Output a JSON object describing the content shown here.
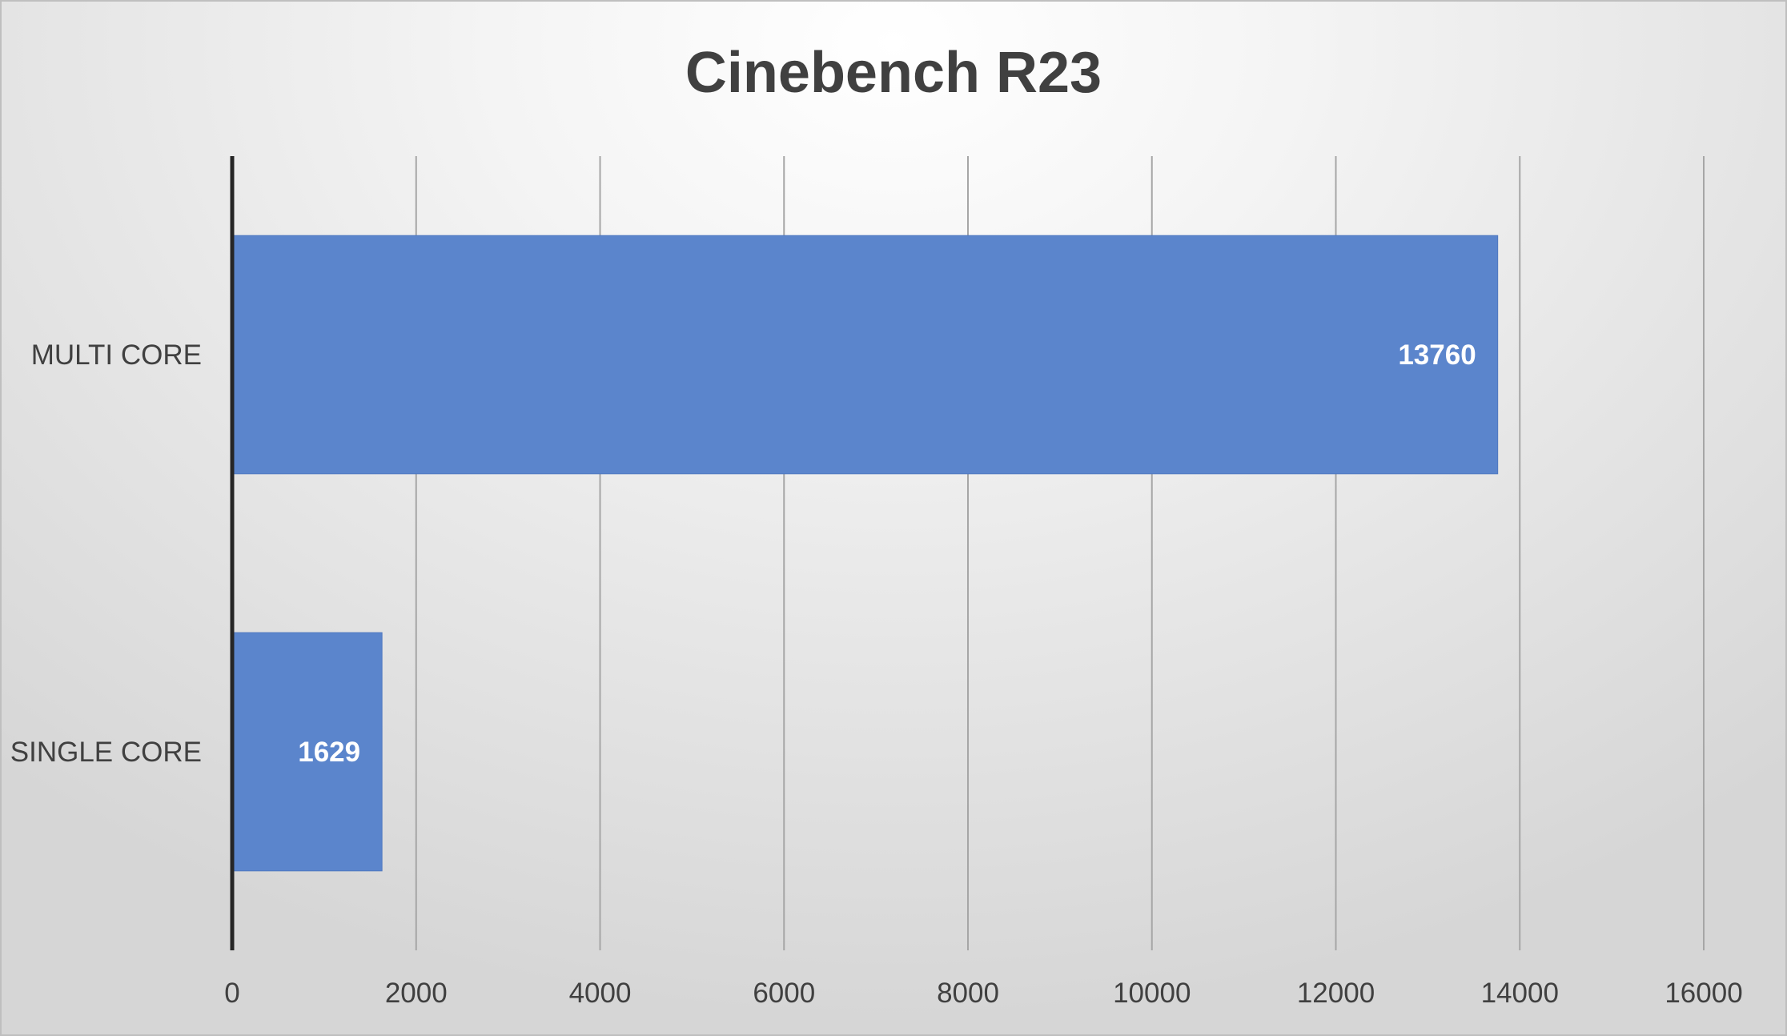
{
  "chart_data": {
    "type": "bar",
    "orientation": "horizontal",
    "title": "Cinebench R23",
    "categories": [
      "MULTI CORE",
      "SINGLE CORE"
    ],
    "values": [
      13760,
      1629
    ],
    "xlabel": "",
    "ylabel": "",
    "xlim": [
      0,
      16000
    ],
    "x_ticks": [
      0,
      2000,
      4000,
      6000,
      8000,
      10000,
      12000,
      14000,
      16000
    ],
    "grid": true,
    "legend": "none",
    "data_labels": true,
    "colors": {
      "bar": "#5b85cc",
      "bar_edge": "#4f78c0",
      "gridline": "#a6a6a6",
      "axis": "#262626",
      "text": "#404040",
      "data_label": "#ffffff"
    }
  }
}
